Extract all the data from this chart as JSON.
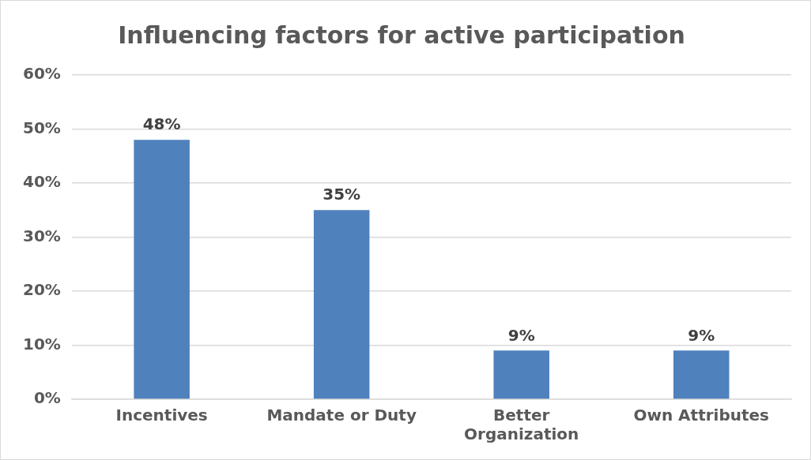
{
  "chart_data": {
    "type": "bar",
    "title": "Influencing factors for active participation",
    "categories": [
      "Incentives",
      "Mandate or Duty",
      "Better Organization",
      "Own Attributes"
    ],
    "values": [
      48,
      35,
      9,
      9
    ],
    "value_labels": [
      "48%",
      "35%",
      "9%",
      "9%"
    ],
    "color": "#4f81bd",
    "ylim": [
      0,
      60
    ],
    "yticks": [
      {
        "value": 0,
        "label": "0%"
      },
      {
        "value": 10,
        "label": "10%"
      },
      {
        "value": 20,
        "label": "20%"
      },
      {
        "value": 30,
        "label": "30%"
      },
      {
        "value": 40,
        "label": "40%"
      },
      {
        "value": 50,
        "label": "50%"
      },
      {
        "value": 60,
        "label": "60%"
      }
    ],
    "grid": "y"
  }
}
